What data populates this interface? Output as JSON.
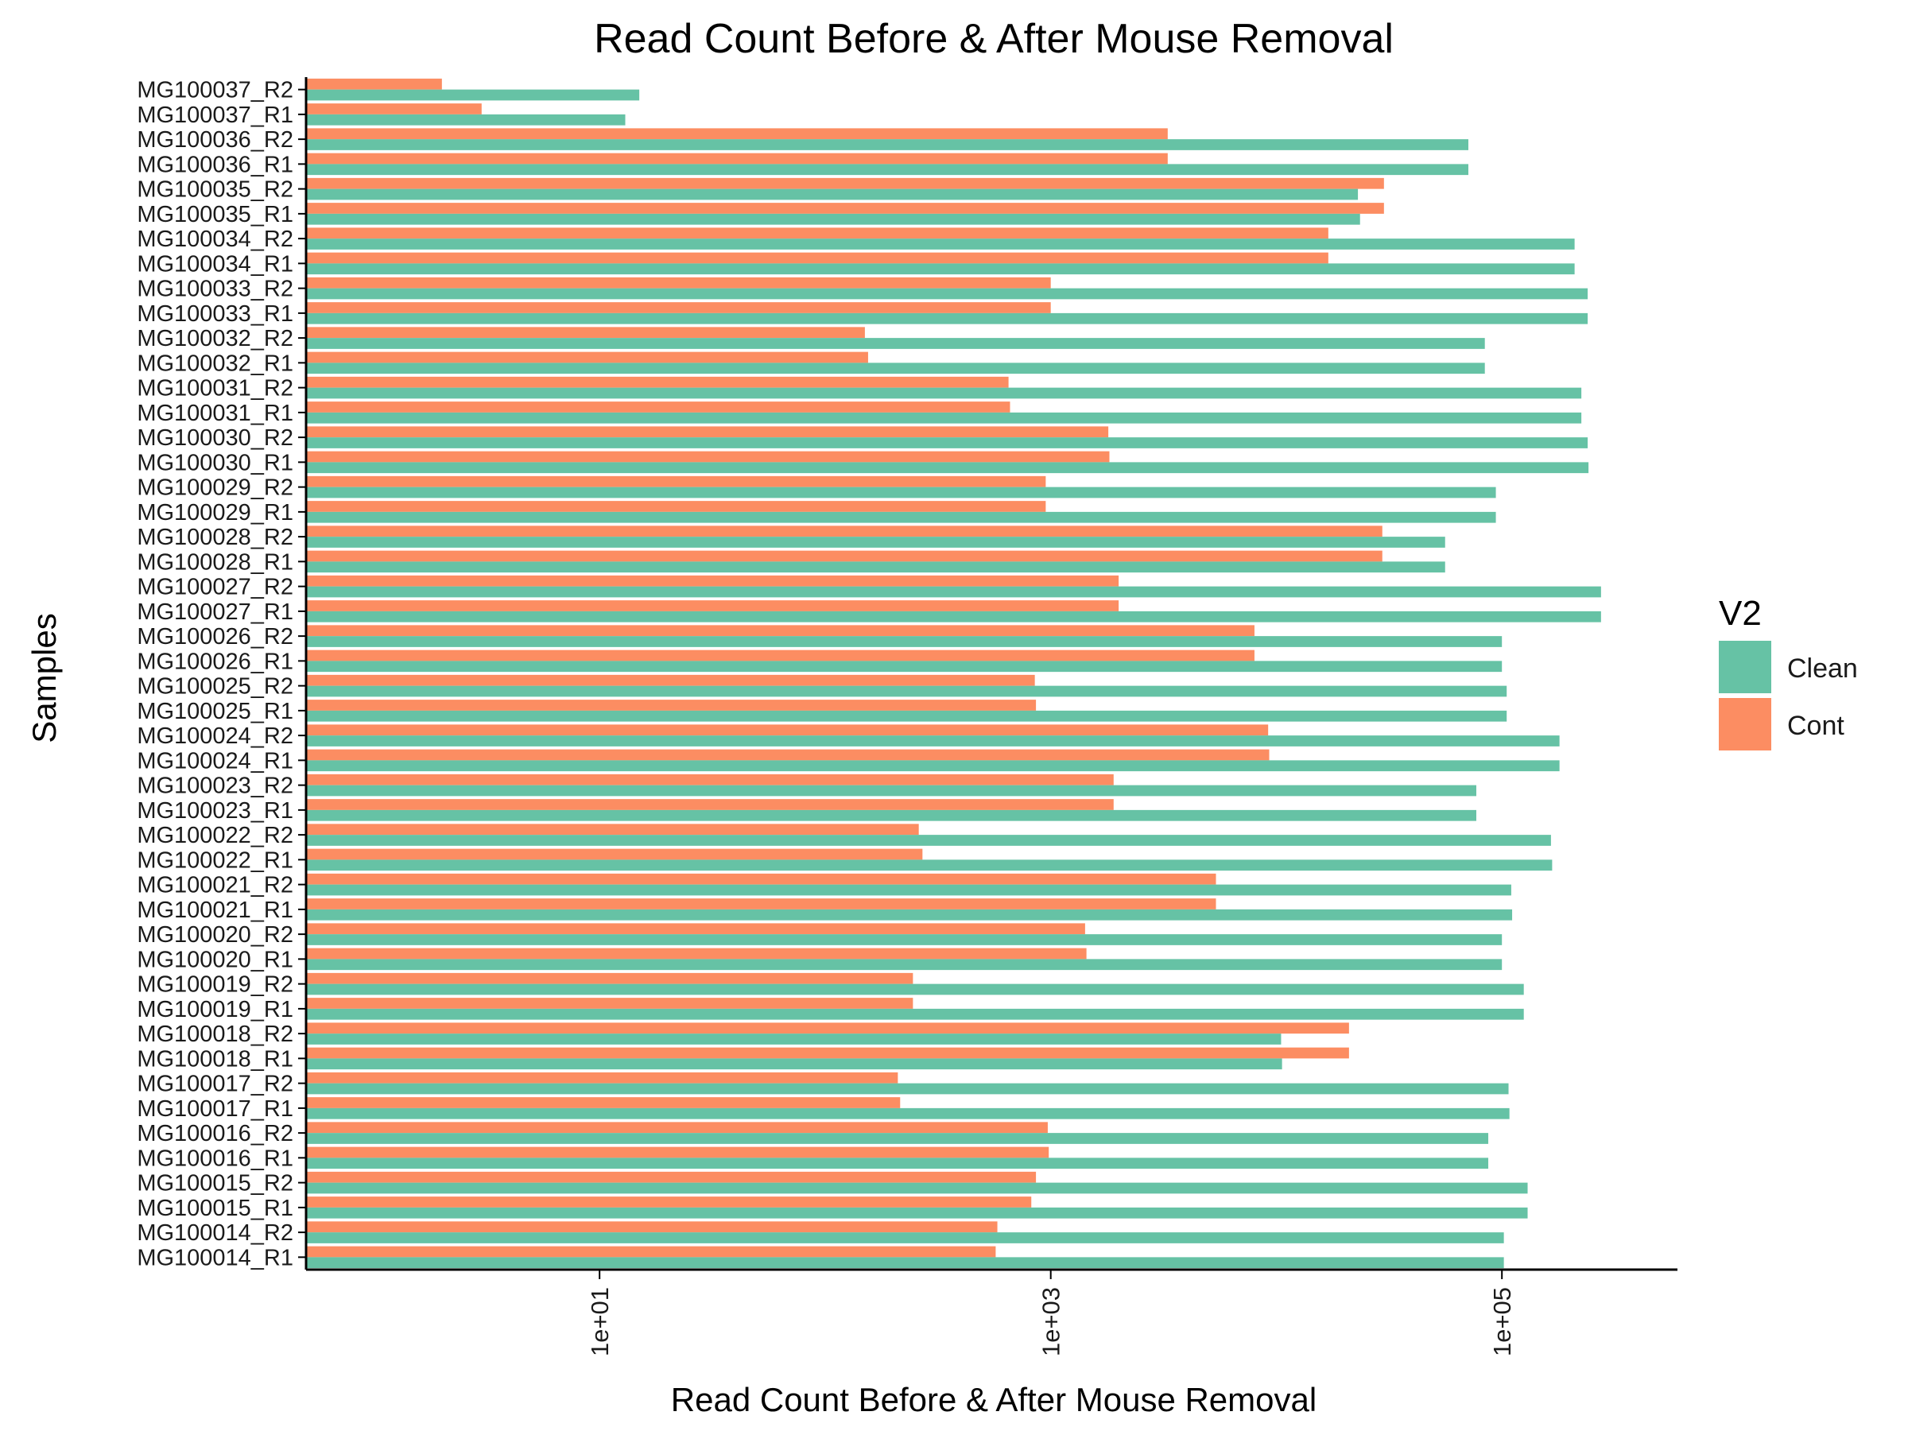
{
  "chart_data": {
    "type": "bar",
    "orientation": "horizontal",
    "title": "Read Count Before & After Mouse Removal",
    "xlabel": "Read Count Before & After Mouse Removal",
    "ylabel": "Samples",
    "x_scale": "log10",
    "xlim": [
      0.5,
      600000
    ],
    "x_ticks": [
      10,
      1000,
      100000
    ],
    "x_tick_labels": [
      "1e+01",
      "1e+03",
      "1e+05"
    ],
    "grid": false,
    "legend": {
      "title": "V2",
      "position": "right"
    },
    "colors": {
      "Clean": "#66c2a5",
      "Cont": "#fc8d62"
    },
    "categories": [
      "MG100037_R2",
      "MG100037_R1",
      "MG100036_R2",
      "MG100036_R1",
      "MG100035_R2",
      "MG100035_R1",
      "MG100034_R2",
      "MG100034_R1",
      "MG100033_R2",
      "MG100033_R1",
      "MG100032_R2",
      "MG100032_R1",
      "MG100031_R2",
      "MG100031_R1",
      "MG100030_R2",
      "MG100030_R1",
      "MG100029_R2",
      "MG100029_R1",
      "MG100028_R2",
      "MG100028_R1",
      "MG100027_R2",
      "MG100027_R1",
      "MG100026_R2",
      "MG100026_R1",
      "MG100025_R2",
      "MG100025_R1",
      "MG100024_R2",
      "MG100024_R1",
      "MG100023_R2",
      "MG100023_R1",
      "MG100022_R2",
      "MG100022_R1",
      "MG100021_R2",
      "MG100021_R1",
      "MG100020_R2",
      "MG100020_R1",
      "MG100019_R2",
      "MG100019_R1",
      "MG100018_R2",
      "MG100018_R1",
      "MG100017_R2",
      "MG100017_R1",
      "MG100016_R2",
      "MG100016_R1",
      "MG100015_R2",
      "MG100015_R1",
      "MG100014_R2",
      "MG100014_R1"
    ],
    "series": [
      {
        "name": "Cont",
        "values": [
          2,
          3,
          3300,
          3300,
          30000,
          30000,
          17000,
          17000,
          1000,
          1000,
          150,
          155,
          650,
          660,
          1800,
          1820,
          950,
          950,
          29500,
          29500,
          2000,
          2000,
          8000,
          8000,
          850,
          860,
          9200,
          9300,
          1900,
          1900,
          260,
          270,
          5400,
          5400,
          1420,
          1440,
          245,
          245,
          21000,
          21000,
          210,
          215,
          970,
          980,
          860,
          820,
          580,
          570
        ]
      },
      {
        "name": "Clean",
        "values": [
          15,
          13,
          71000,
          71000,
          23000,
          23500,
          210000,
          210000,
          240000,
          240000,
          84000,
          84000,
          225000,
          225000,
          240000,
          242000,
          94000,
          94000,
          56000,
          56000,
          275000,
          275000,
          100000,
          100000,
          105000,
          105000,
          180000,
          180000,
          77000,
          77000,
          165000,
          167000,
          110000,
          111000,
          100000,
          100000,
          125000,
          125000,
          10500,
          10600,
          107000,
          108000,
          87000,
          87000,
          130000,
          130000,
          102000,
          102000
        ]
      }
    ]
  }
}
